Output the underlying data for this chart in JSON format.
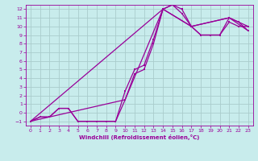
{
  "xlabel": "Windchill (Refroidissement éolien,°C)",
  "background_color": "#c8ecec",
  "line_color": "#990099",
  "grid_color": "#aacccc",
  "xlim": [
    -0.5,
    23.5
  ],
  "ylim": [
    -1.5,
    12.5
  ],
  "xticks": [
    0,
    1,
    2,
    3,
    4,
    5,
    6,
    7,
    8,
    9,
    10,
    11,
    12,
    13,
    14,
    15,
    16,
    17,
    18,
    19,
    20,
    21,
    22,
    23
  ],
  "yticks": [
    -1,
    0,
    1,
    2,
    3,
    4,
    5,
    6,
    7,
    8,
    9,
    10,
    11,
    12
  ],
  "line1_x": [
    0,
    1,
    2,
    3,
    4,
    5,
    6,
    7,
    8,
    9,
    10,
    11,
    12,
    13,
    14,
    15,
    16,
    17,
    18,
    19,
    20,
    21,
    22,
    23
  ],
  "line1_y": [
    -1,
    -0.5,
    -0.5,
    0.5,
    0.5,
    -1,
    -1,
    -1,
    -1,
    -1,
    1.5,
    4.5,
    5,
    8,
    12,
    12.5,
    12,
    10,
    9,
    9,
    9,
    10.5,
    10,
    10
  ],
  "line2_x": [
    0,
    1,
    2,
    3,
    4,
    5,
    6,
    7,
    8,
    9,
    10,
    11,
    12,
    13,
    14,
    15,
    16,
    17,
    18,
    19,
    20,
    21,
    22,
    23
  ],
  "line2_y": [
    -1,
    -0.5,
    -0.5,
    0.5,
    0.5,
    -1,
    -1,
    -1,
    -1,
    -1,
    2.5,
    5,
    5.5,
    8.5,
    12,
    12.5,
    11.5,
    10,
    9,
    9,
    9,
    11,
    10.5,
    9.5
  ],
  "line3_x": [
    0,
    14,
    17,
    21,
    23
  ],
  "line3_y": [
    -1,
    12,
    10,
    11,
    10
  ],
  "line4_x": [
    0,
    10,
    14,
    17,
    21,
    23
  ],
  "line4_y": [
    -1,
    1.5,
    12,
    10,
    11,
    9.5
  ],
  "figsize": [
    3.2,
    2.0
  ],
  "dpi": 100
}
